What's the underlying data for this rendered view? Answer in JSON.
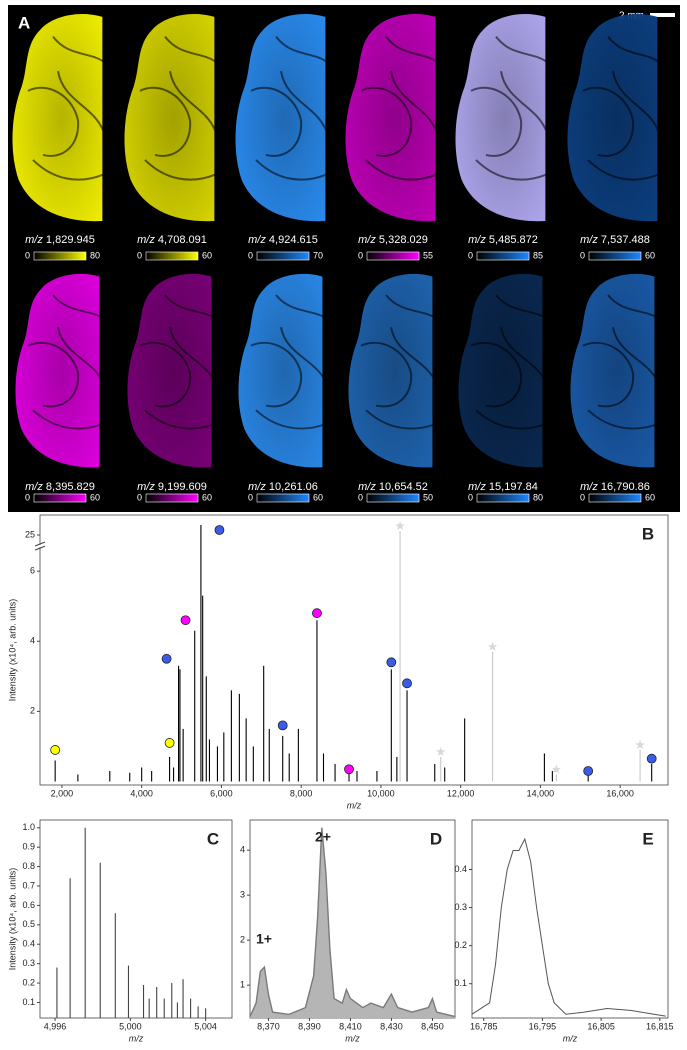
{
  "panel_a": {
    "label": "A",
    "scale_bar": "2 mm",
    "mz_prefix": "m/z",
    "images": [
      {
        "mz": "1,829.945",
        "min": 0,
        "max": 80,
        "color": "#ffff00",
        "image_color": "#f2f000"
      },
      {
        "mz": "4,708.091",
        "min": 0,
        "max": 60,
        "color": "#ffff00",
        "image_color": "#d8d600"
      },
      {
        "mz": "4,924.615",
        "min": 0,
        "max": 70,
        "color": "#1e88ff",
        "image_color": "#2a8cf0"
      },
      {
        "mz": "5,328.029",
        "min": 0,
        "max": 55,
        "color": "#ff00ff",
        "image_color": "#c000b8"
      },
      {
        "mz": "5,485.872",
        "min": 0,
        "max": 85,
        "color": "#1e88ff",
        "image_color": "#b0a8f0"
      },
      {
        "mz": "7,537.488",
        "min": 0,
        "max": 60,
        "color": "#1e88ff",
        "image_color": "#0c3f80"
      },
      {
        "mz": "8,395.829",
        "min": 0,
        "max": 60,
        "color": "#ff00ff",
        "image_color": "#e000e0"
      },
      {
        "mz": "9,199.609",
        "min": 0,
        "max": 60,
        "color": "#ff00ff",
        "image_color": "#7a0078"
      },
      {
        "mz": "10,261.06",
        "min": 0,
        "max": 60,
        "color": "#1e88ff",
        "image_color": "#2a88e8"
      },
      {
        "mz": "10,654.52",
        "min": 0,
        "max": 50,
        "color": "#1e88ff",
        "image_color": "#1f64b0"
      },
      {
        "mz": "15,197.84",
        "min": 0,
        "max": 80,
        "color": "#1e88ff",
        "image_color": "#0a2850"
      },
      {
        "mz": "16,790.86",
        "min": 0,
        "max": 60,
        "color": "#1e88ff",
        "image_color": "#1a5aa8"
      }
    ]
  },
  "chart_data": [
    {
      "type": "stick",
      "label": "B",
      "y_label": "Intensity (x10⁴, arb. units)",
      "x_label": "m/z",
      "xlim": [
        1450,
        17200
      ],
      "xticks": [
        {
          "value": 2000,
          "label": "2,000"
        },
        {
          "value": 4000,
          "label": "4,000"
        },
        {
          "value": 6000,
          "label": "6,000"
        },
        {
          "value": 8000,
          "label": "8,000"
        },
        {
          "value": 10000,
          "label": "10,000"
        },
        {
          "value": 12000,
          "label": "12,000"
        },
        {
          "value": 14000,
          "label": "14,000"
        },
        {
          "value": 16000,
          "label": "16,000"
        }
      ],
      "ylim": [
        -0.1,
        27
      ],
      "y_break": [
        6.6,
        24.3
      ],
      "yticks": [
        2,
        4,
        6,
        25
      ],
      "series": [
        {
          "color": "#000000",
          "x": [
            1830,
            2400,
            3200,
            3700,
            4000,
            4250,
            4700,
            4800,
            4925,
            4960,
            5040,
            5330,
            5486,
            5530,
            5620,
            5700,
            5900,
            6060,
            6250,
            6450,
            6620,
            6800,
            7060,
            7200,
            7537,
            7700,
            7930,
            8396,
            8560,
            8850,
            9200,
            9400,
            9900,
            10261,
            10400,
            10655,
            11350,
            11600,
            12100,
            14100,
            14300,
            15198,
            16791
          ],
          "values": [
            0.6,
            0.2,
            0.3,
            0.25,
            0.4,
            0.3,
            0.7,
            0.4,
            3.3,
            3.2,
            1.5,
            4.3,
            26,
            5.3,
            3.0,
            1.2,
            1.0,
            1.4,
            2.6,
            2.5,
            1.8,
            1.0,
            3.3,
            1.5,
            1.3,
            0.8,
            1.5,
            4.6,
            0.8,
            0.5,
            0.3,
            0.3,
            0.3,
            3.2,
            0.7,
            2.6,
            0.5,
            0.4,
            1.8,
            0.8,
            0.3,
            0.2,
            0.5
          ]
        },
        {
          "color": "#c8c8c8",
          "marker": "star",
          "x": [
            10480,
            11500,
            12800,
            14400,
            16500
          ],
          "values": [
            25.4,
            0.7,
            3.7,
            0.2,
            0.9
          ]
        }
      ],
      "markers": {
        "x": [
          1830,
          4700,
          4625,
          5100,
          5950,
          7537,
          8396,
          9200,
          10261,
          10655,
          15198,
          16791
        ],
        "y": [
          0.9,
          1.1,
          3.5,
          4.6,
          25.5,
          1.6,
          4.8,
          0.35,
          3.4,
          2.8,
          0.3,
          0.65
        ],
        "colors": [
          "#ffff00",
          "#ffff00",
          "#3a5ce8",
          "#ff00ff",
          "#3a5ce8",
          "#3a5ce8",
          "#ff00ff",
          "#ff00ff",
          "#3a5ce8",
          "#3a5ce8",
          "#3a5ce8",
          "#3a5ce8"
        ]
      }
    },
    {
      "type": "stick",
      "label": "C",
      "y_label": "Intensity (x10⁴, arb. units)",
      "x_label": "m/z",
      "xlim": [
        4995.2,
        5005.4
      ],
      "xticks": [
        {
          "value": 4996,
          "label": "4,996"
        },
        {
          "value": 5000,
          "label": "5,000"
        },
        {
          "value": 5004,
          "label": "5,004"
        }
      ],
      "ylim": [
        0.02,
        1.04
      ],
      "yticks": [
        0.1,
        0.2,
        0.3,
        0.4,
        0.5,
        0.6,
        0.7,
        0.8,
        0.9,
        {
          "value": 1,
          "label": "1.0"
        }
      ],
      "series": [
        {
          "color": "#444444",
          "x": [
            4996.1,
            4996.8,
            4997.6,
            4998.4,
            4999.2,
            4999.9,
            5000.7,
            5001.0,
            5001.4,
            5001.8,
            5002.2,
            5002.5,
            5002.8,
            5003.2,
            5003.6,
            5004.0
          ],
          "values": [
            0.28,
            0.74,
            1.0,
            0.82,
            0.56,
            0.29,
            0.19,
            0.12,
            0.18,
            0.12,
            0.2,
            0.1,
            0.22,
            0.12,
            0.08,
            0.07
          ]
        }
      ]
    },
    {
      "type": "line",
      "label": "D",
      "x_label": "m/z",
      "annotations": [
        "1+",
        "2+"
      ],
      "xlim": [
        8361,
        8461
      ],
      "xticks": [
        {
          "value": 8370,
          "label": "8,370"
        },
        {
          "value": 8390,
          "label": "8,390"
        },
        {
          "value": 8410,
          "label": "8,410"
        },
        {
          "value": 8430,
          "label": "8,430"
        },
        {
          "value": 8450,
          "label": "8,450"
        }
      ],
      "ylim": [
        0.27,
        4.67
      ],
      "yticks": [
        1,
        2,
        3,
        4
      ],
      "series": [
        {
          "color": "#7a7a7a",
          "fill": true,
          "x": [
            8361,
            8364,
            8366,
            8368,
            8370,
            8372,
            8380,
            8388,
            8392,
            8394,
            8396,
            8398,
            8400,
            8402,
            8406,
            8408,
            8410,
            8416,
            8420,
            8426,
            8430,
            8433,
            8440,
            8448,
            8450,
            8452,
            8461
          ],
          "values": [
            0.3,
            0.6,
            1.3,
            1.4,
            0.8,
            0.4,
            0.35,
            0.5,
            1.2,
            2.5,
            4.5,
            3.5,
            1.8,
            0.7,
            0.6,
            0.9,
            0.7,
            0.5,
            0.6,
            0.5,
            0.8,
            0.5,
            0.4,
            0.5,
            0.7,
            0.4,
            0.3
          ]
        }
      ]
    },
    {
      "type": "line",
      "label": "E",
      "x_label": "m/z",
      "xlim": [
        16783,
        16816.4
      ],
      "xticks": [
        {
          "value": 16785,
          "label": "16,785"
        },
        {
          "value": 16795,
          "label": "16,795"
        },
        {
          "value": 16805,
          "label": "16,805"
        },
        {
          "value": 16815,
          "label": "16,815"
        }
      ],
      "ylim": [
        0.01,
        0.53
      ],
      "yticks": [
        0.1,
        0.2,
        0.3,
        0.4
      ],
      "series": [
        {
          "color": "#555555",
          "x": [
            16783,
            16786,
            16787,
            16788,
            16789,
            16790,
            16791,
            16792,
            16793,
            16794,
            16795,
            16796,
            16797,
            16799,
            16802,
            16806,
            16810,
            16814,
            16816
          ],
          "values": [
            0.02,
            0.05,
            0.15,
            0.3,
            0.4,
            0.45,
            0.45,
            0.48,
            0.42,
            0.3,
            0.2,
            0.1,
            0.05,
            0.02,
            0.025,
            0.035,
            0.03,
            0.02,
            0.015
          ]
        }
      ]
    }
  ]
}
